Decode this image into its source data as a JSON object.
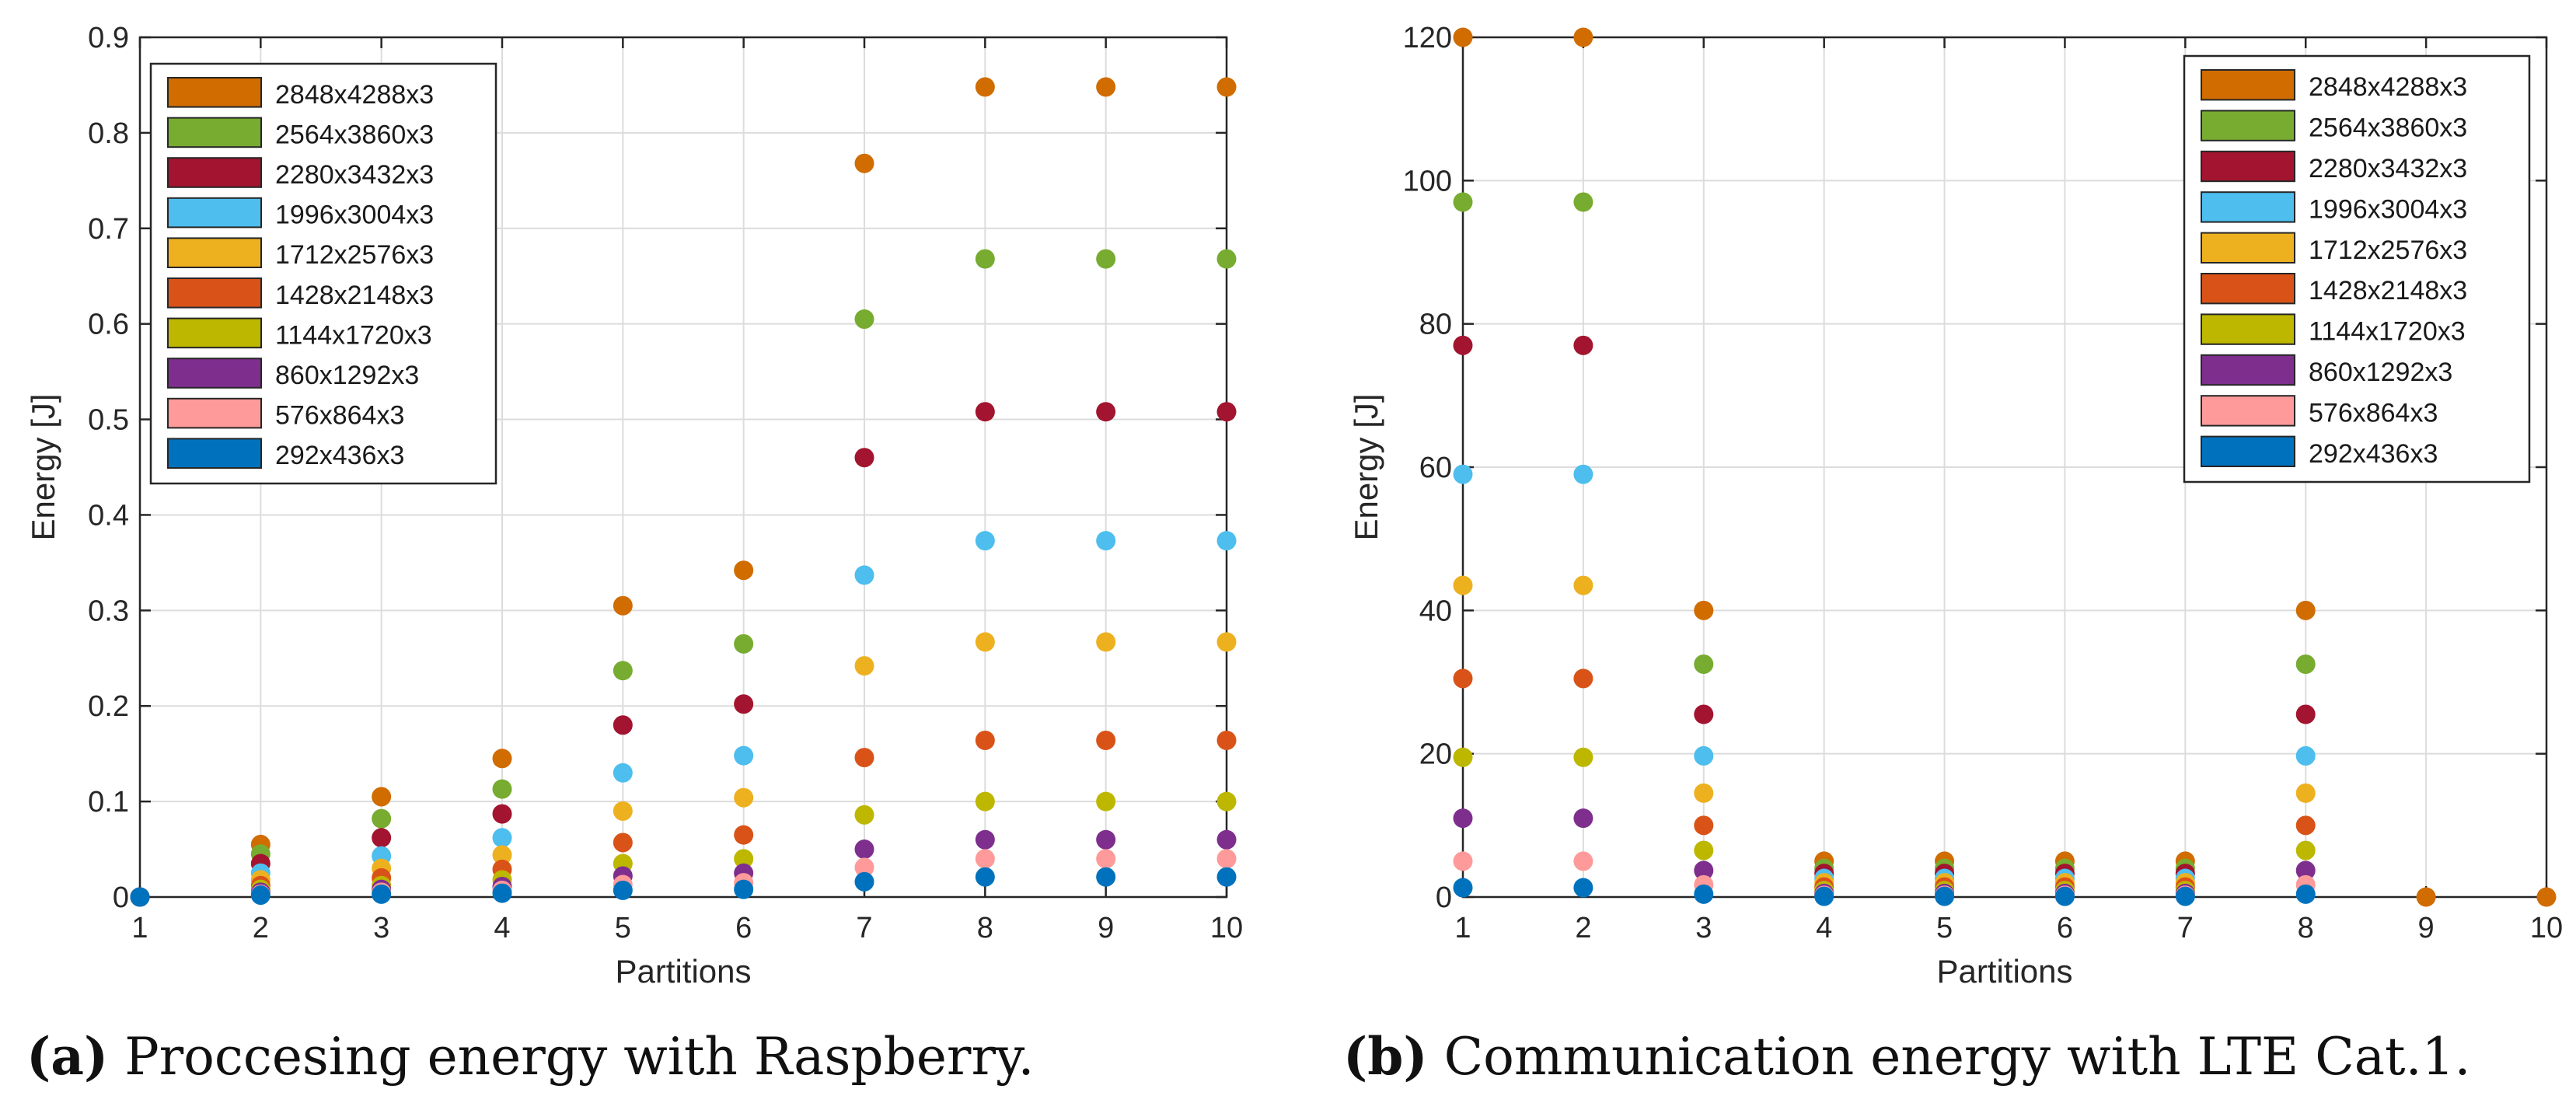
{
  "chart_data": [
    {
      "type": "scatter",
      "panel": "a",
      "xlabel": "Partitions",
      "ylabel": "Energy [J]",
      "xlim": [
        1,
        10
      ],
      "ylim": [
        0,
        0.9
      ],
      "xticks": [
        "1",
        "2",
        "3",
        "4",
        "5",
        "6",
        "7",
        "8",
        "9",
        "10"
      ],
      "yticks": [
        "0",
        "0.1",
        "0.2",
        "0.3",
        "0.4",
        "0.5",
        "0.6",
        "0.7",
        "0.8",
        "0.9"
      ],
      "grid": true,
      "legend_position": "top-left",
      "x": [
        1,
        2,
        3,
        4,
        5,
        6,
        7,
        8,
        9,
        10
      ],
      "series": [
        {
          "name": "2848x4288x3",
          "color": "#D06C00",
          "values": [
            0,
            0.055,
            0.105,
            0.145,
            0.305,
            0.342,
            0.768,
            0.848,
            0.848,
            0.848
          ]
        },
        {
          "name": "2564x3860x3",
          "color": "#77AC30",
          "values": [
            0,
            0.045,
            0.082,
            0.113,
            0.237,
            0.265,
            0.605,
            0.668,
            0.668,
            0.668
          ]
        },
        {
          "name": "2280x3432x3",
          "color": "#A2142F",
          "values": [
            0,
            0.035,
            0.062,
            0.087,
            0.18,
            0.202,
            0.46,
            0.508,
            0.508,
            0.508
          ]
        },
        {
          "name": "1996x3004x3",
          "color": "#4DBEEE",
          "values": [
            0,
            0.025,
            0.043,
            0.062,
            0.13,
            0.148,
            0.337,
            0.373,
            0.373,
            0.373
          ]
        },
        {
          "name": "1712x2576x3",
          "color": "#EDB120",
          "values": [
            0,
            0.018,
            0.03,
            0.044,
            0.09,
            0.104,
            0.242,
            0.267,
            0.267,
            0.267
          ]
        },
        {
          "name": "1428x2148x3",
          "color": "#D95319",
          "values": [
            0,
            0.012,
            0.02,
            0.029,
            0.057,
            0.065,
            0.146,
            0.164,
            0.164,
            0.164
          ]
        },
        {
          "name": "1144x1720x3",
          "color": "#BDB700",
          "values": [
            0,
            0.008,
            0.012,
            0.018,
            0.035,
            0.04,
            0.086,
            0.1,
            0.1,
            0.1
          ]
        },
        {
          "name": "860x1292x3",
          "color": "#7E2F8E",
          "values": [
            0,
            0.005,
            0.008,
            0.011,
            0.022,
            0.025,
            0.05,
            0.06,
            0.06,
            0.06
          ]
        },
        {
          "name": "576x864x3",
          "color": "#FF9A9A",
          "values": [
            0,
            0.003,
            0.005,
            0.007,
            0.013,
            0.015,
            0.031,
            0.04,
            0.04,
            0.04
          ]
        },
        {
          "name": "292x436x3",
          "color": "#0072BD",
          "values": [
            0,
            0.002,
            0.003,
            0.004,
            0.007,
            0.008,
            0.016,
            0.021,
            0.021,
            0.021
          ]
        }
      ]
    },
    {
      "type": "scatter",
      "panel": "b",
      "xlabel": "Partitions",
      "ylabel": "Energy [J]",
      "xlim": [
        1,
        10
      ],
      "ylim": [
        0,
        120
      ],
      "xticks": [
        "1",
        "2",
        "3",
        "4",
        "5",
        "6",
        "7",
        "8",
        "9",
        "10"
      ],
      "yticks": [
        "0",
        "20",
        "40",
        "60",
        "80",
        "100",
        "120"
      ],
      "grid": true,
      "legend_position": "top-right",
      "x": [
        1,
        2,
        3,
        4,
        5,
        6,
        7,
        8,
        9,
        10
      ],
      "series": [
        {
          "name": "2848x4288x3",
          "color": "#D06C00",
          "values": [
            120,
            120,
            40,
            5,
            5,
            5,
            5,
            40,
            0,
            0
          ]
        },
        {
          "name": "2564x3860x3",
          "color": "#77AC30",
          "values": [
            97,
            97,
            32.5,
            4,
            4,
            4,
            4,
            32.5,
            null,
            null
          ]
        },
        {
          "name": "2280x3432x3",
          "color": "#A2142F",
          "values": [
            77,
            77,
            25.5,
            3.3,
            3.3,
            3.3,
            3.3,
            25.5,
            null,
            null
          ]
        },
        {
          "name": "1996x3004x3",
          "color": "#4DBEEE",
          "values": [
            59,
            59,
            19.7,
            2.6,
            2.6,
            2.6,
            2.6,
            19.7,
            null,
            null
          ]
        },
        {
          "name": "1712x2576x3",
          "color": "#EDB120",
          "values": [
            43.5,
            43.5,
            14.5,
            2,
            2,
            2,
            2,
            14.5,
            null,
            null
          ]
        },
        {
          "name": "1428x2148x3",
          "color": "#D95319",
          "values": [
            30.5,
            30.5,
            10,
            1.4,
            1.4,
            1.4,
            1.4,
            10,
            null,
            null
          ]
        },
        {
          "name": "1144x1720x3",
          "color": "#BDB700",
          "values": [
            19.5,
            19.5,
            6.5,
            0.9,
            0.9,
            0.9,
            0.9,
            6.5,
            null,
            null
          ]
        },
        {
          "name": "860x1292x3",
          "color": "#7E2F8E",
          "values": [
            11,
            11,
            3.7,
            0.5,
            0.5,
            0.5,
            0.5,
            3.7,
            null,
            null
          ]
        },
        {
          "name": "576x864x3",
          "color": "#FF9A9A",
          "values": [
            5,
            5,
            1.7,
            0.25,
            0.25,
            0.25,
            0.25,
            1.7,
            null,
            null
          ]
        },
        {
          "name": "292x436x3",
          "color": "#0072BD",
          "values": [
            1.3,
            1.3,
            0.4,
            0.1,
            0.1,
            0.1,
            0.1,
            0.4,
            null,
            null
          ]
        }
      ]
    }
  ],
  "captions": {
    "a": {
      "label": "(a)",
      "text": " Proccesing energy with Raspberry."
    },
    "b": {
      "label": "(b)",
      "text": " Communication energy with LTE Cat.1."
    }
  }
}
